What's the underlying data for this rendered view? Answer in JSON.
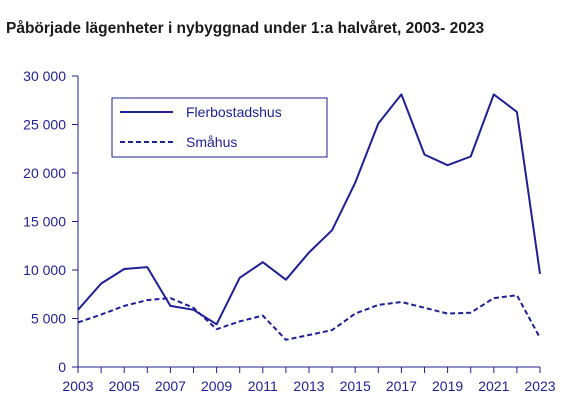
{
  "chart_data": {
    "type": "line",
    "title": "Påbörjade lägenheter i nybyggnad under 1:a halvåret, 2003- 2023",
    "xlabel": "",
    "ylabel": "",
    "x": [
      2003,
      2004,
      2005,
      2006,
      2007,
      2008,
      2009,
      2010,
      2011,
      2012,
      2013,
      2014,
      2015,
      2016,
      2017,
      2018,
      2019,
      2020,
      2021,
      2022,
      2023
    ],
    "xticks": [
      "2003",
      "2005",
      "2007",
      "2009",
      "2011",
      "2013",
      "2015",
      "2017",
      "2019",
      "2021",
      "2023"
    ],
    "yticks": [
      "0",
      "5 000",
      "10 000",
      "15 000",
      "20 000",
      "25 000",
      "30 000"
    ],
    "ylim": [
      0,
      30000
    ],
    "xlim": [
      2003,
      2023
    ],
    "grid": false,
    "legend_position": "top-left",
    "series": [
      {
        "name": "Flerbostadshus",
        "style": "solid",
        "values": [
          5900,
          8600,
          10100,
          10300,
          6300,
          5900,
          4400,
          9200,
          10800,
          9000,
          11800,
          14100,
          19000,
          25100,
          28100,
          21900,
          20800,
          21700,
          28100,
          26300,
          9600
        ]
      },
      {
        "name": "Småhus",
        "style": "dashed",
        "values": [
          4600,
          5400,
          6300,
          6900,
          7100,
          6100,
          3900,
          4700,
          5300,
          2800,
          3300,
          3800,
          5500,
          6400,
          6700,
          6100,
          5500,
          5600,
          7100,
          7400,
          3000
        ]
      }
    ],
    "colors": {
      "line": "#1f1f96",
      "axis": "#1f1f96",
      "title": "#1a1a1a"
    }
  }
}
